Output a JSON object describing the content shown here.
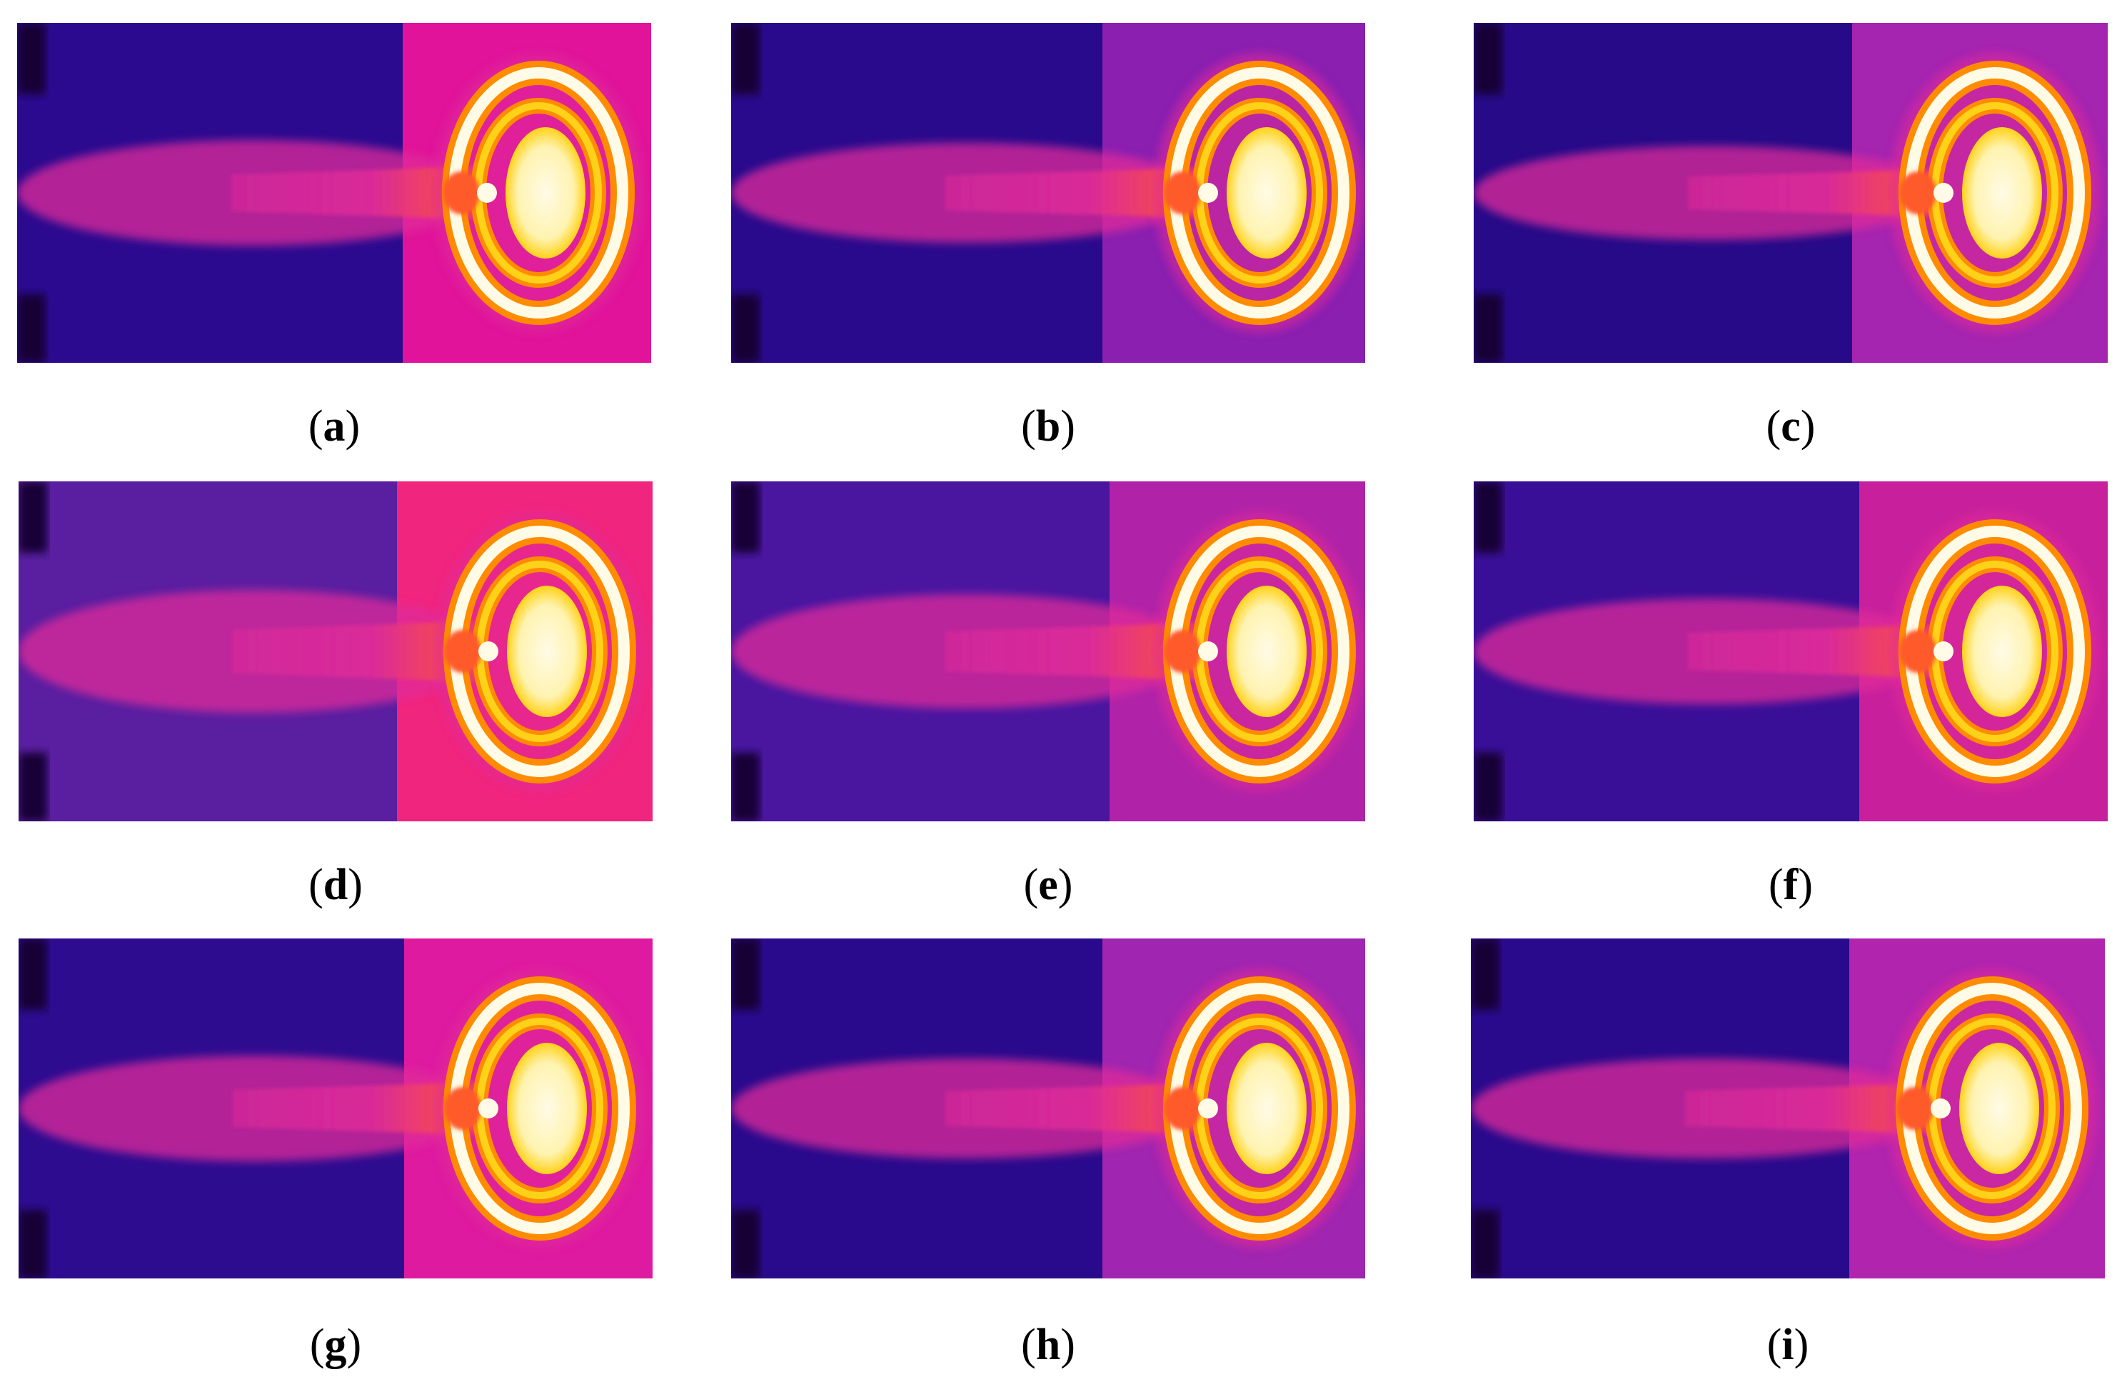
{
  "figure": {
    "panels": [
      {
        "label": "a",
        "variant": 0
      },
      {
        "label": "b",
        "variant": 1
      },
      {
        "label": "c",
        "variant": 2
      },
      {
        "label": "d",
        "variant": 3
      },
      {
        "label": "e",
        "variant": 4
      },
      {
        "label": "f",
        "variant": 5
      },
      {
        "label": "g",
        "variant": 6
      },
      {
        "label": "h",
        "variant": 7
      },
      {
        "label": "i",
        "variant": 8
      }
    ],
    "palette": {
      "cold": "#2a0a8c",
      "dark": "#120035",
      "mid": "#7a1fa8",
      "warm": "#e02a9a",
      "hot": "#ff5a2a",
      "orange": "#ff8c00",
      "yellow": "#ffd21a",
      "white": "#fffbe6"
    }
  }
}
